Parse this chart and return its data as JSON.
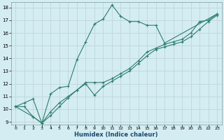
{
  "xlabel": "Humidex (Indice chaleur)",
  "bg_color": "#d4edf2",
  "grid_color": "#c0d8de",
  "line_color": "#2e7d6e",
  "xlim": [
    -0.5,
    23.5
  ],
  "ylim": [
    8.8,
    18.4
  ],
  "xticks": [
    0,
    1,
    2,
    3,
    4,
    5,
    6,
    7,
    8,
    9,
    10,
    11,
    12,
    13,
    14,
    15,
    16,
    17,
    18,
    19,
    20,
    21,
    22,
    23
  ],
  "yticks": [
    9,
    10,
    11,
    12,
    13,
    14,
    15,
    16,
    17,
    18
  ],
  "line1_x": [
    0,
    1,
    2,
    3,
    4,
    5,
    6,
    7,
    8,
    9,
    10,
    11,
    12,
    13,
    14,
    15,
    16,
    17,
    23
  ],
  "line1_y": [
    10.2,
    10.2,
    9.4,
    8.9,
    11.2,
    11.7,
    11.8,
    13.9,
    15.3,
    16.7,
    17.1,
    18.2,
    17.3,
    16.9,
    16.9,
    16.6,
    16.6,
    15.2,
    17.5
  ],
  "line2_x": [
    0,
    2,
    3,
    4,
    5,
    6,
    7,
    8,
    9,
    10,
    11,
    12,
    13,
    14,
    15,
    16,
    17,
    18,
    19,
    20,
    21,
    22,
    23
  ],
  "line2_y": [
    10.2,
    9.4,
    8.9,
    9.5,
    10.2,
    10.9,
    11.5,
    12.1,
    12.1,
    12.1,
    12.4,
    12.8,
    13.2,
    13.8,
    14.5,
    14.8,
    15.1,
    15.3,
    15.5,
    16.0,
    16.9,
    17.0,
    17.5
  ],
  "line3_x": [
    0,
    1,
    2,
    3,
    4,
    5,
    6,
    7,
    8,
    9,
    10,
    11,
    12,
    13,
    14,
    15,
    16,
    17,
    18,
    19,
    20,
    21,
    22,
    23
  ],
  "line3_y": [
    10.2,
    10.5,
    10.8,
    8.9,
    9.8,
    10.5,
    11.0,
    11.5,
    12.0,
    11.1,
    11.8,
    12.2,
    12.6,
    13.0,
    13.6,
    14.2,
    14.7,
    14.9,
    15.1,
    15.3,
    15.7,
    16.3,
    16.9,
    17.4
  ]
}
